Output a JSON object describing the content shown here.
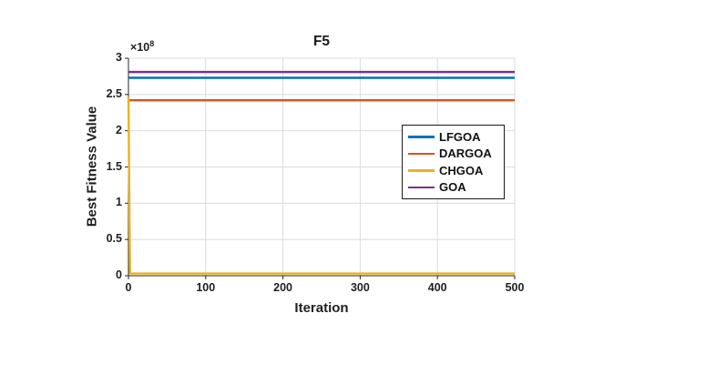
{
  "figure": {
    "y_axis_multiplier_base": "×10",
    "y_axis_multiplier_exponent": "8"
  },
  "colors": {
    "grid": "#dcdcdc",
    "axis": "#252525",
    "text": "#1f1f1f",
    "legend_border": "#1a1a1a"
  },
  "chart_data": {
    "type": "line",
    "title": "F5",
    "xlabel": "Iteration",
    "ylabel": "Best Fitness Value",
    "xlim": [
      0,
      500
    ],
    "ylim": [
      0,
      300000000
    ],
    "grid": true,
    "box": false,
    "legend_position": "right-center",
    "xticks": [
      0,
      100,
      200,
      300,
      400,
      500
    ],
    "xtick_labels": [
      "0",
      "100",
      "200",
      "300",
      "400",
      "500"
    ],
    "yticks": [
      0,
      50000000,
      100000000,
      150000000,
      200000000,
      250000000,
      300000000
    ],
    "ytick_labels": [
      "0",
      "0.5",
      "1",
      "1.5",
      "2",
      "2.5",
      "3"
    ],
    "y_multiplier_label": "×10⁸",
    "series": [
      {
        "name": "LFGOA",
        "color": "#0072BD",
        "x": [
          0,
          500
        ],
        "y": [
          273000000,
          273000000
        ]
      },
      {
        "name": "DARGOA",
        "color": "#D95319",
        "x": [
          0,
          500
        ],
        "y": [
          242000000,
          242000000
        ]
      },
      {
        "name": "CHGOA",
        "color": "#EDB120",
        "x": [
          0,
          2,
          500
        ],
        "y": [
          247000000,
          3000000,
          3000000
        ]
      },
      {
        "name": "GOA",
        "color": "#7E2F8E",
        "x": [
          0,
          500
        ],
        "y": [
          281000000,
          281000000
        ]
      }
    ]
  }
}
